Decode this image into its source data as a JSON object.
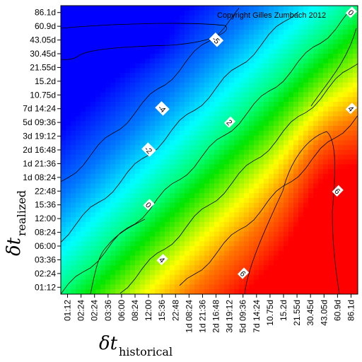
{
  "chart_data": {
    "type": "heatmap",
    "copyright": "Copyright Gilles Zumbach 2012",
    "xlabel": {
      "base": "δt",
      "sub": "historical"
    },
    "ylabel": {
      "base": "δt",
      "sub": "realized"
    },
    "x_ticks": [
      "01:12",
      "02:24",
      "02:24",
      "03:36",
      "06:00",
      "08:24",
      "12:00",
      "15:36",
      "22:48",
      "1d 08:24",
      "1d 21:36",
      "2d 16:48",
      "3d 19:12",
      "5d 09:36",
      "7d 14:24",
      "10.75d",
      "15.2d",
      "21.55d",
      "30.45d",
      "43.05d",
      "60.9d",
      "86.1d"
    ],
    "y_ticks": [
      "01:12",
      "02:24",
      "03:36",
      "06:00",
      "08:24",
      "12:00",
      "15:36",
      "22:48",
      "1d 08:24",
      "1d 21:36",
      "2d 16:48",
      "3d 19:12",
      "5d 09:36",
      "7d 14:24",
      "10.75d",
      "15.2d",
      "21.55d",
      "30.45d",
      "43.05d",
      "60.9d",
      "86.1d"
    ],
    "contour_labels": [
      {
        "text": "-5",
        "near_x": "2d 16:48",
        "near_y": "43.05d"
      },
      {
        "text": "-4",
        "near_x": "15:36",
        "near_y": "7d 14:24"
      },
      {
        "text": "-2",
        "near_x": "12:00",
        "near_y": "2d 16:48"
      },
      {
        "text": "0",
        "near_x": "12:00",
        "near_y": "15:36"
      },
      {
        "text": "2",
        "near_x": "3d 19:12",
        "near_y": "5d 09:36"
      },
      {
        "text": "4",
        "near_x": "15:36",
        "near_y": "03:36"
      },
      {
        "text": "4",
        "near_x": "86.1d",
        "near_y": "7d 14:24"
      },
      {
        "text": "6",
        "near_x": "5d 09:36",
        "near_y": "02:24"
      },
      {
        "text": "6",
        "near_x": "60.9d",
        "near_y": "22:48"
      },
      {
        "text": "0",
        "near_x": "86.1d",
        "near_y": "86.1d"
      }
    ],
    "zlim": [
      -6,
      7
    ],
    "colorscale": [
      "#0000ff",
      "#00ffff",
      "#00ff00",
      "#ffff00",
      "#ff0000"
    ]
  }
}
